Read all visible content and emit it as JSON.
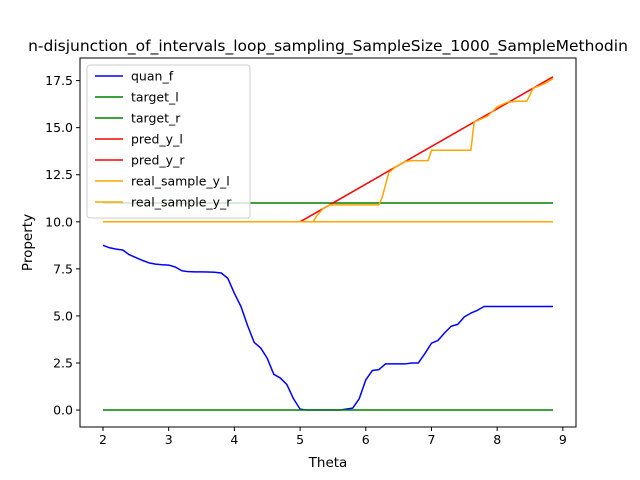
{
  "chart_data": {
    "type": "line",
    "title": "n-disjunction_of_intervals_loop_sampling_SampleSize_1000_SampleMethodin",
    "xlabel": "Theta",
    "ylabel": "Property",
    "xlim": [
      1.65,
      9.2
    ],
    "ylim": [
      -0.9,
      18.7
    ],
    "xticks": [
      2,
      3,
      4,
      5,
      6,
      7,
      8,
      9
    ],
    "yticks": [
      0.0,
      2.5,
      5.0,
      7.5,
      10.0,
      12.5,
      15.0,
      17.5
    ],
    "ytick_labels": [
      "0.0",
      "2.5",
      "5.0",
      "7.5",
      "10.0",
      "12.5",
      "15.0",
      "17.5"
    ],
    "grid": false,
    "legend": {
      "position": "top-left"
    },
    "series": [
      {
        "name": "quan_f",
        "color": "#0000ff",
        "x": [
          2.0,
          2.1,
          2.2,
          2.3,
          2.4,
          2.5,
          2.6,
          2.7,
          2.8,
          2.9,
          3.0,
          3.1,
          3.2,
          3.3,
          3.4,
          3.5,
          3.6,
          3.7,
          3.8,
          3.9,
          4.0,
          4.1,
          4.2,
          4.3,
          4.4,
          4.5,
          4.6,
          4.7,
          4.8,
          4.9,
          5.0,
          5.1,
          5.2,
          5.3,
          5.4,
          5.5,
          5.6,
          5.7,
          5.8,
          5.9,
          6.0,
          6.1,
          6.2,
          6.3,
          6.4,
          6.5,
          6.6,
          6.7,
          6.8,
          6.9,
          7.0,
          7.1,
          7.2,
          7.3,
          7.4,
          7.5,
          7.6,
          7.7,
          7.8,
          7.9,
          8.0,
          8.1,
          8.2,
          8.3,
          8.4,
          8.5,
          8.6,
          8.7,
          8.8,
          8.85
        ],
        "y": [
          8.75,
          8.62,
          8.55,
          8.5,
          8.25,
          8.1,
          7.95,
          7.82,
          7.75,
          7.72,
          7.7,
          7.6,
          7.4,
          7.35,
          7.34,
          7.34,
          7.33,
          7.32,
          7.28,
          7.0,
          6.2,
          5.5,
          4.5,
          3.6,
          3.3,
          2.75,
          1.9,
          1.7,
          1.35,
          0.6,
          0.05,
          0.0,
          0.0,
          0.0,
          0.0,
          0.0,
          0.0,
          0.05,
          0.1,
          0.6,
          1.6,
          2.1,
          2.15,
          2.45,
          2.45,
          2.45,
          2.45,
          2.5,
          2.5,
          3.0,
          3.55,
          3.7,
          4.1,
          4.45,
          4.55,
          4.95,
          5.15,
          5.3,
          5.5,
          5.5,
          5.5,
          5.5,
          5.5,
          5.5,
          5.5,
          5.5,
          5.5,
          5.5,
          5.5,
          5.5
        ]
      },
      {
        "name": "target_l",
        "color": "#008000",
        "x": [
          2.0,
          8.85
        ],
        "y": [
          0.0,
          0.0
        ]
      },
      {
        "name": "target_r",
        "color": "#008000",
        "x": [
          2.0,
          8.85
        ],
        "y": [
          11.0,
          11.0
        ]
      },
      {
        "name": "pred_y_l",
        "color": "#ff0000",
        "x": [
          2.0,
          5.0,
          8.85
        ],
        "y": [
          10.0,
          10.0,
          17.7
        ]
      },
      {
        "name": "pred_y_r",
        "color": "#ff0000",
        "x": [
          2.0,
          8.85
        ],
        "y": [
          10.0,
          10.0
        ]
      },
      {
        "name": "real_sample_y_l",
        "color": "#ffa500",
        "x": [
          2.0,
          5.2,
          5.25,
          5.35,
          5.45,
          5.5,
          6.2,
          6.25,
          6.35,
          6.45,
          6.6,
          6.7,
          6.95,
          7.0,
          7.6,
          7.65,
          7.85,
          8.0,
          8.15,
          8.3,
          8.45,
          8.55,
          8.7,
          8.85
        ],
        "y": [
          10.0,
          10.0,
          10.3,
          10.7,
          10.9,
          10.9,
          10.9,
          11.3,
          12.6,
          12.9,
          13.2,
          13.25,
          13.25,
          13.8,
          13.8,
          15.3,
          15.6,
          16.1,
          16.35,
          16.4,
          16.4,
          17.1,
          17.3,
          17.6
        ]
      },
      {
        "name": "real_sample_y_r",
        "color": "#ffa500",
        "x": [
          2.0,
          8.85
        ],
        "y": [
          10.0,
          10.0
        ]
      }
    ]
  }
}
